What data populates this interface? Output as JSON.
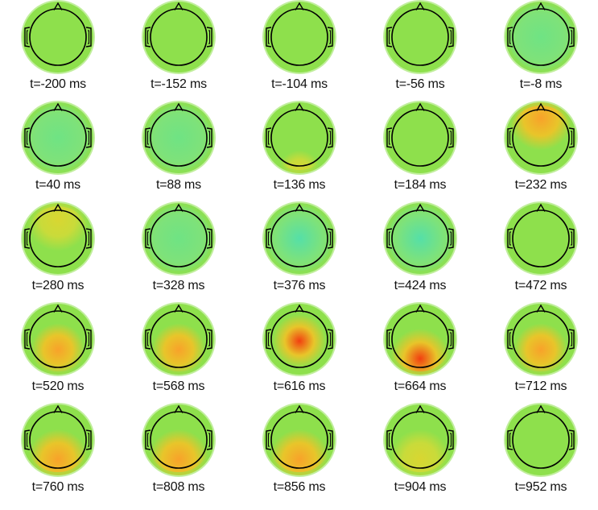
{
  "figure": {
    "colors": {
      "background": "#ffffff",
      "head_outline": "#000000",
      "neutral": "#8ee04c",
      "lowest": "#55dfa8",
      "low": "#6fe384",
      "high": "#f8a22a",
      "highest": "#f23f10"
    },
    "maps": [
      {
        "label": "t=-200 ms",
        "level": 0.05,
        "focus": "uniform"
      },
      {
        "label": "t=-152 ms",
        "level": 0.04,
        "focus": "uniform"
      },
      {
        "label": "t=-104 ms",
        "level": 0.03,
        "focus": "uniform"
      },
      {
        "label": "t=-56 ms",
        "level": -0.05,
        "focus": "uniform"
      },
      {
        "label": "t=-8 ms",
        "level": -0.08,
        "focus": "uniform"
      },
      {
        "label": "t=40 ms",
        "level": -0.18,
        "focus": "uniform"
      },
      {
        "label": "t=88 ms",
        "level": -0.1,
        "focus": "uniform"
      },
      {
        "label": "t=136 ms",
        "level": 0.25,
        "focus": "posterior-edge"
      },
      {
        "label": "t=184 ms",
        "level": 0.08,
        "focus": "posterior"
      },
      {
        "label": "t=232 ms",
        "level": 0.65,
        "focus": "frontal"
      },
      {
        "label": "t=280 ms",
        "level": 0.4,
        "focus": "frontal"
      },
      {
        "label": "t=328 ms",
        "level": -0.18,
        "focus": "uniform"
      },
      {
        "label": "t=376 ms",
        "level": -0.28,
        "focus": "uniform"
      },
      {
        "label": "t=424 ms",
        "level": -0.22,
        "focus": "uniform"
      },
      {
        "label": "t=472 ms",
        "level": 0.05,
        "focus": "uniform"
      },
      {
        "label": "t=520 ms",
        "level": 0.55,
        "focus": "central-posterior"
      },
      {
        "label": "t=568 ms",
        "level": 0.65,
        "focus": "central-posterior"
      },
      {
        "label": "t=616 ms",
        "level": 0.85,
        "focus": "central"
      },
      {
        "label": "t=664 ms",
        "level": 0.9,
        "focus": "posterior"
      },
      {
        "label": "t=712 ms",
        "level": 0.5,
        "focus": "central-posterior"
      },
      {
        "label": "t=760 ms",
        "level": 0.75,
        "focus": "posterior"
      },
      {
        "label": "t=808 ms",
        "level": 0.75,
        "focus": "posterior"
      },
      {
        "label": "t=856 ms",
        "level": 0.65,
        "focus": "posterior"
      },
      {
        "label": "t=904 ms",
        "level": 0.3,
        "focus": "posterior"
      },
      {
        "label": "t=952 ms",
        "level": -0.05,
        "focus": "uniform"
      }
    ]
  }
}
